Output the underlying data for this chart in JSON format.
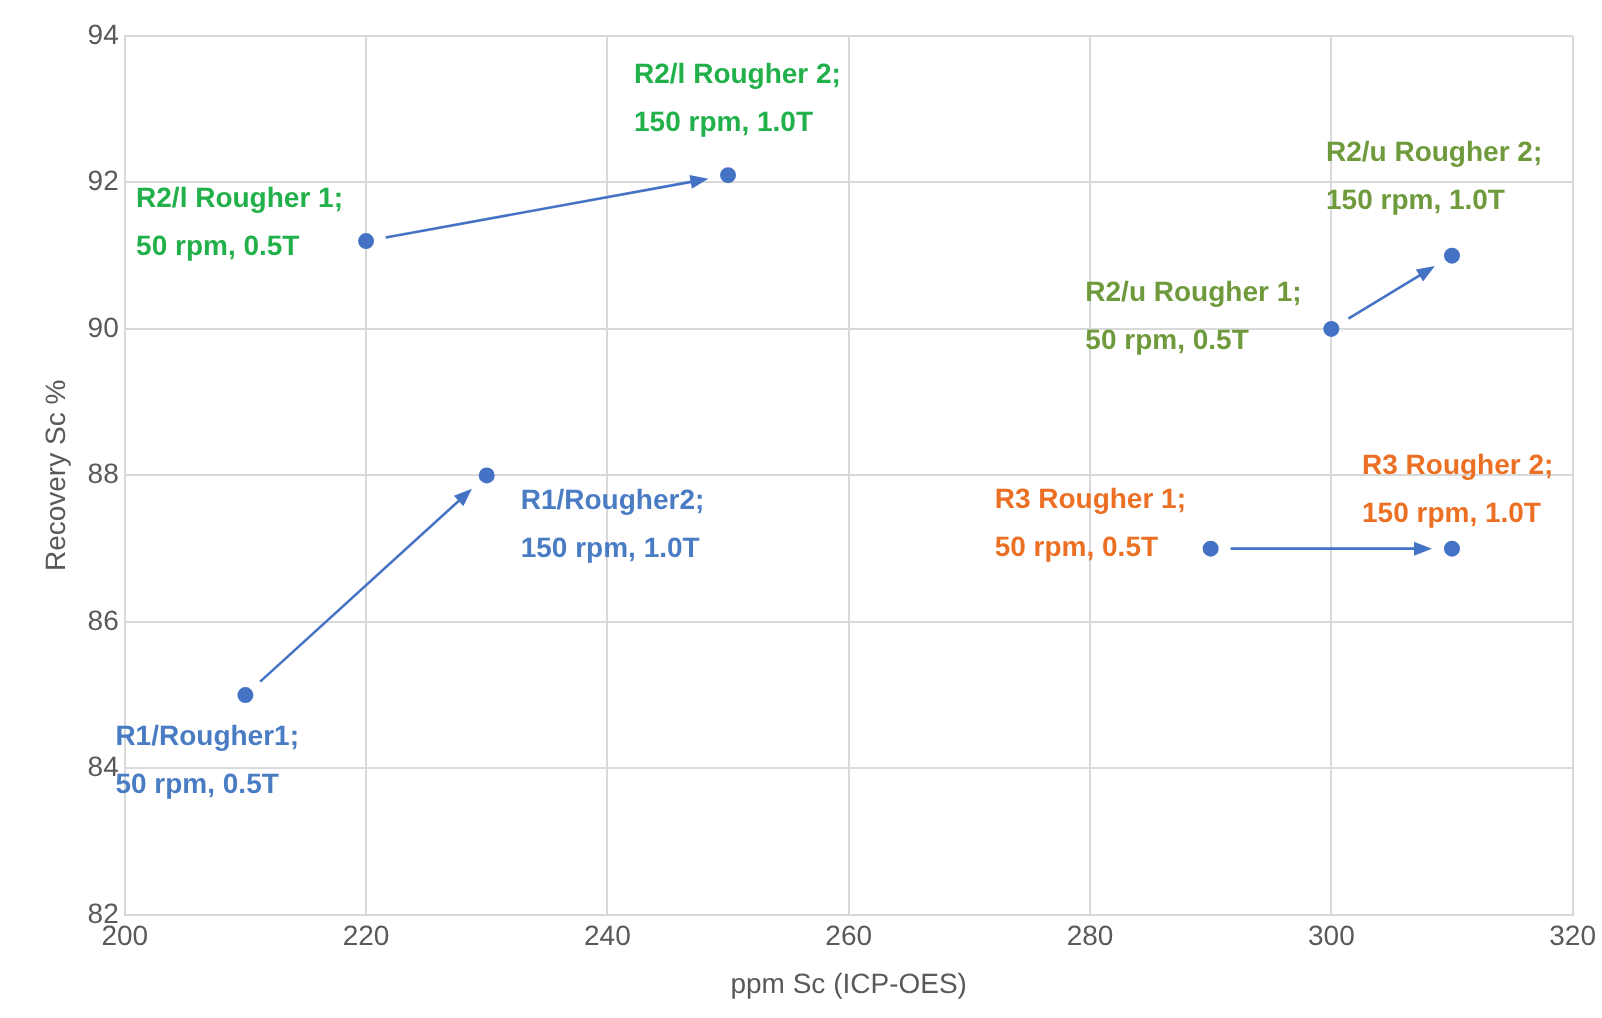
{
  "chart_data": {
    "type": "scatter",
    "xlabel": "ppm Sc (ICP-OES)",
    "ylabel": "Recovery Sc %",
    "x": [
      210,
      230,
      220,
      250,
      300,
      310,
      290,
      310
    ],
    "series": [
      {
        "color": "#4472c4",
        "values": [
          85,
          88,
          91.2,
          92.1,
          90,
          91,
          87,
          87
        ]
      }
    ],
    "xlim": [
      200,
      320
    ],
    "xticks": [
      200,
      220,
      240,
      260,
      280,
      300,
      320
    ],
    "ylim": [
      82,
      94
    ],
    "yticks": [
      82,
      84,
      86,
      88,
      90,
      92,
      94
    ],
    "grid": true,
    "legend": false,
    "marker": "circle",
    "annotations": [
      {
        "text": "R1/Rougher1;\n50 rpm, 0.5T",
        "x": 210,
        "y": 85
      },
      {
        "text": "R1/Rougher2;\n150 rpm, 1.0T",
        "x": 230,
        "y": 88
      },
      {
        "text": "R2/l Rougher 1;\n50 rpm, 0.5T",
        "x": 220,
        "y": 91.2
      },
      {
        "text": "R2/l Rougher 2;\n150 rpm, 1.0T",
        "x": 250,
        "y": 92.1
      },
      {
        "text": "R2/u Rougher 1;\n50 rpm, 0.5T",
        "x": 300,
        "y": 90
      },
      {
        "text": "R2/u Rougher 2;\n150 rpm, 1.0T",
        "x": 310,
        "y": 91
      },
      {
        "text": "R3 Rougher 1;\n50 rpm, 0.5T",
        "x": 290,
        "y": 87
      },
      {
        "text": "R3 Rougher 2;\n150 rpm, 1.0T",
        "x": 310,
        "y": 87
      }
    ]
  }
}
